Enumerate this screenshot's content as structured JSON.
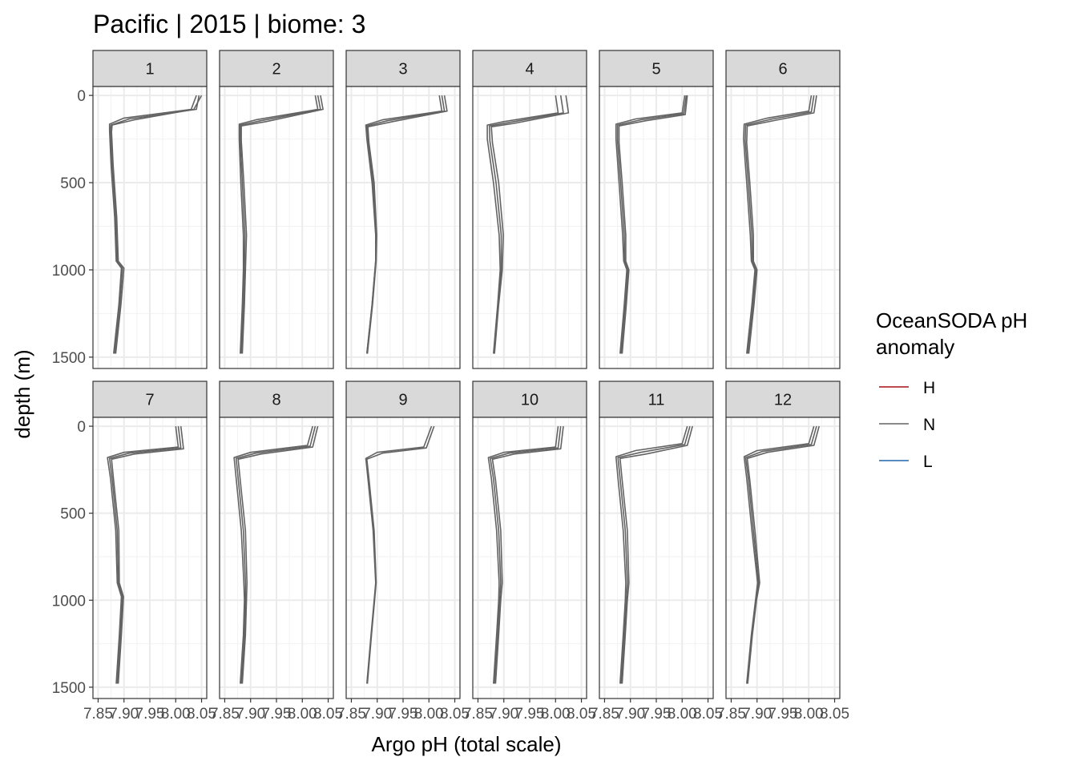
{
  "chart_data": {
    "type": "line",
    "title": "Pacific | 2015 | biome: 3",
    "xlabel": "Argo pH (total scale)",
    "ylabel": "depth (m)",
    "xlim": [
      7.85,
      8.05
    ],
    "ylim": [
      1500,
      0
    ],
    "y_reversed": true,
    "x_ticks": [
      7.85,
      7.9,
      7.95,
      8.0,
      8.05
    ],
    "x_tick_labels": [
      "7.85",
      "7.90",
      "7.95",
      "8.00",
      "8.05"
    ],
    "y_ticks": [
      0,
      500,
      1000,
      1500
    ],
    "y_tick_labels": [
      "0",
      "500",
      "1000",
      "1500"
    ],
    "grid": true,
    "legend": {
      "title_lines": [
        "OceanSODA pH",
        "anomaly"
      ],
      "position": "right",
      "items": [
        {
          "label": "H",
          "color": "#A50F15"
        },
        {
          "label": "N",
          "color": "#636363"
        },
        {
          "label": "L",
          "color": "#2166AC"
        }
      ]
    },
    "line_color": "#636363",
    "panels": [
      {
        "label": "1",
        "profiles": [
          {
            "depth": [
              0,
              80,
              130,
              165,
              200,
              400,
              700,
              950,
              990,
              1200,
              1480
            ],
            "ph": [
              8.04,
              8.03,
              7.9,
              7.872,
              7.872,
              7.875,
              7.882,
              7.885,
              7.895,
              7.89,
              7.88
            ]
          },
          {
            "depth": [
              0,
              80,
              135,
              170,
              200,
              400,
              700,
              950,
              990,
              1200,
              1480
            ],
            "ph": [
              8.045,
              8.04,
              7.91,
              7.875,
              7.874,
              7.877,
              7.884,
              7.887,
              7.897,
              7.892,
              7.882
            ]
          },
          {
            "depth": [
              0,
              80,
              140,
              170,
              210,
              400,
              700,
              950,
              990,
              1200,
              1480
            ],
            "ph": [
              8.05,
              8.035,
              7.92,
              7.877,
              7.876,
              7.879,
              7.886,
              7.889,
              7.9,
              7.894,
              7.884
            ]
          }
        ]
      },
      {
        "label": "2",
        "profiles": [
          {
            "depth": [
              0,
              80,
              140,
              165,
              250,
              500,
              800,
              1000,
              1200,
              1480
            ],
            "ph": [
              8.025,
              8.03,
              7.91,
              7.878,
              7.878,
              7.881,
              7.886,
              7.886,
              7.884,
              7.88
            ]
          },
          {
            "depth": [
              0,
              80,
              145,
              170,
              250,
              500,
              800,
              1000,
              1200,
              1480
            ],
            "ph": [
              8.03,
              8.035,
              7.92,
              7.88,
              7.88,
              7.884,
              7.889,
              7.888,
              7.886,
              7.882
            ]
          },
          {
            "depth": [
              0,
              80,
              150,
              175,
              260,
              500,
              800,
              1000,
              1200,
              1480
            ],
            "ph": [
              8.035,
              8.04,
              7.93,
              7.882,
              7.882,
              7.887,
              7.892,
              7.89,
              7.888,
              7.884
            ]
          }
        ]
      },
      {
        "label": "3",
        "profiles": [
          {
            "depth": [
              0,
              90,
              140,
              170,
              250,
              500,
              800,
              950,
              1200,
              1480
            ],
            "ph": [
              8.02,
              8.025,
              7.91,
              7.878,
              7.88,
              7.89,
              7.897,
              7.897,
              7.89,
              7.88
            ]
          },
          {
            "depth": [
              0,
              90,
              145,
              175,
              260,
              500,
              800,
              950,
              1200,
              1480
            ],
            "ph": [
              8.025,
              8.03,
              7.92,
              7.88,
              7.882,
              7.892,
              7.898,
              7.897,
              7.89,
              7.88
            ]
          },
          {
            "depth": [
              0,
              90,
              150,
              180,
              270,
              500,
              800,
              950,
              1200,
              1480
            ],
            "ph": [
              8.03,
              8.035,
              7.93,
              7.882,
              7.884,
              7.894,
              7.899,
              7.898,
              7.891,
              7.881
            ]
          }
        ]
      },
      {
        "label": "4",
        "profiles": [
          {
            "depth": [
              0,
              100,
              150,
              170,
              250,
              500,
              800,
              1000,
              1200,
              1480
            ],
            "ph": [
              8.0,
              8.005,
              7.9,
              7.868,
              7.868,
              7.88,
              7.891,
              7.893,
              7.888,
              7.88
            ]
          },
          {
            "depth": [
              0,
              100,
              155,
              175,
              260,
              500,
              800,
              1000,
              1200,
              1480
            ],
            "ph": [
              8.01,
              8.015,
              7.91,
              7.872,
              7.873,
              7.885,
              7.895,
              7.895,
              7.889,
              7.881
            ]
          },
          {
            "depth": [
              0,
              100,
              160,
              180,
              270,
              500,
              800,
              1000,
              1200,
              1480
            ],
            "ph": [
              8.02,
              8.025,
              7.92,
              7.876,
              7.878,
              7.89,
              7.899,
              7.897,
              7.89,
              7.882
            ]
          }
        ]
      },
      {
        "label": "5",
        "profiles": [
          {
            "depth": [
              0,
              100,
              135,
              165,
              250,
              500,
              800,
              950,
              1000,
              1200,
              1480
            ],
            "ph": [
              8.005,
              8.0,
              7.91,
              7.872,
              7.872,
              7.878,
              7.885,
              7.887,
              7.893,
              7.888,
              7.88
            ]
          },
          {
            "depth": [
              0,
              105,
              140,
              170,
              260,
              500,
              800,
              950,
              1000,
              1200,
              1480
            ],
            "ph": [
              8.008,
              8.003,
              7.92,
              7.875,
              7.875,
              7.881,
              7.888,
              7.889,
              7.895,
              7.89,
              7.882
            ]
          },
          {
            "depth": [
              0,
              110,
              145,
              175,
              270,
              500,
              800,
              950,
              1000,
              1200,
              1480
            ],
            "ph": [
              8.01,
              8.006,
              7.93,
              7.878,
              7.878,
              7.884,
              7.891,
              7.891,
              7.897,
              7.892,
              7.884
            ]
          }
        ]
      },
      {
        "label": "6",
        "profiles": [
          {
            "depth": [
              0,
              90,
              130,
              165,
              250,
              500,
              800,
              950,
              1000,
              1200,
              1480
            ],
            "ph": [
              8.005,
              8.0,
              7.92,
              7.875,
              7.874,
              7.88,
              7.887,
              7.889,
              7.896,
              7.89,
              7.88
            ]
          },
          {
            "depth": [
              0,
              95,
              135,
              170,
              260,
              500,
              800,
              950,
              1000,
              1200,
              1480
            ],
            "ph": [
              8.01,
              8.005,
              7.93,
              7.878,
              7.877,
              7.883,
              7.89,
              7.891,
              7.898,
              7.892,
              7.882
            ]
          },
          {
            "depth": [
              0,
              100,
              140,
              175,
              270,
              500,
              800,
              950,
              1000,
              1200,
              1480
            ],
            "ph": [
              8.015,
              8.01,
              7.94,
              7.881,
              7.88,
              7.886,
              7.893,
              7.893,
              7.9,
              7.894,
              7.884
            ]
          }
        ]
      },
      {
        "label": "7",
        "profiles": [
          {
            "depth": [
              0,
              120,
              150,
              180,
              300,
              600,
              900,
              980,
              1200,
              1480
            ],
            "ph": [
              8.0,
              8.005,
              7.9,
              7.868,
              7.874,
              7.884,
              7.887,
              7.895,
              7.891,
              7.885
            ]
          },
          {
            "depth": [
              0,
              125,
              155,
              185,
              300,
              600,
              900,
              980,
              1200,
              1480
            ],
            "ph": [
              8.005,
              8.01,
              7.91,
              7.872,
              7.877,
              7.887,
              7.889,
              7.897,
              7.893,
              7.887
            ]
          },
          {
            "depth": [
              0,
              130,
              160,
              190,
              310,
              600,
              900,
              980,
              1200,
              1480
            ],
            "ph": [
              8.01,
              8.015,
              7.92,
              7.876,
              7.88,
              7.89,
              7.891,
              7.899,
              7.895,
              7.889
            ]
          }
        ]
      },
      {
        "label": "8",
        "profiles": [
          {
            "depth": [
              0,
              110,
              150,
              180,
              300,
              600,
              900,
              1000,
              1200,
              1480
            ],
            "ph": [
              8.02,
              8.01,
              7.9,
              7.868,
              7.872,
              7.882,
              7.887,
              7.888,
              7.886,
              7.88
            ]
          },
          {
            "depth": [
              0,
              115,
              155,
              185,
              300,
              600,
              900,
              1000,
              1200,
              1480
            ],
            "ph": [
              8.025,
              8.015,
              7.91,
              7.872,
              7.876,
              7.886,
              7.89,
              7.89,
              7.888,
              7.882
            ]
          },
          {
            "depth": [
              0,
              120,
              160,
              190,
              310,
              600,
              900,
              1000,
              1200,
              1480
            ],
            "ph": [
              8.03,
              8.02,
              7.92,
              7.876,
              7.88,
              7.89,
              7.893,
              7.892,
              7.89,
              7.884
            ]
          }
        ]
      },
      {
        "label": "9",
        "profiles": [
          {
            "depth": [
              0,
              120,
              150,
              185,
              300,
              600,
              900,
              1000,
              1200,
              1480
            ],
            "ph": [
              8.005,
              7.99,
              7.9,
              7.878,
              7.882,
              7.892,
              7.897,
              7.894,
              7.888,
              7.88
            ]
          },
          {
            "depth": [
              0,
              125,
              155,
              190,
              300,
              600,
              900,
              1000,
              1200,
              1480
            ],
            "ph": [
              8.01,
              7.995,
              7.91,
              7.88,
              7.884,
              7.894,
              7.898,
              7.895,
              7.889,
              7.881
            ]
          }
        ]
      },
      {
        "label": "10",
        "profiles": [
          {
            "depth": [
              0,
              120,
              150,
              180,
              300,
              600,
              900,
              1000,
              1200,
              1480
            ],
            "ph": [
              8.005,
              8.0,
              7.9,
              7.87,
              7.876,
              7.886,
              7.891,
              7.89,
              7.886,
              7.88
            ]
          },
          {
            "depth": [
              0,
              125,
              155,
              185,
              300,
              600,
              900,
              1000,
              1200,
              1480
            ],
            "ph": [
              8.01,
              8.005,
              7.91,
              7.874,
              7.88,
              7.89,
              7.894,
              7.892,
              7.888,
              7.882
            ]
          },
          {
            "depth": [
              0,
              130,
              160,
              190,
              310,
              600,
              900,
              1000,
              1200,
              1480
            ],
            "ph": [
              8.015,
              8.01,
              7.92,
              7.878,
              7.884,
              7.894,
              7.897,
              7.894,
              7.89,
              7.884
            ]
          }
        ]
      },
      {
        "label": "11",
        "profiles": [
          {
            "depth": [
              0,
              100,
              140,
              175,
              300,
              600,
              900,
              1000,
              1200,
              1480
            ],
            "ph": [
              8.01,
              8.0,
              7.91,
              7.872,
              7.876,
              7.886,
              7.891,
              7.89,
              7.886,
              7.88
            ]
          },
          {
            "depth": [
              0,
              105,
              150,
              180,
              300,
              600,
              900,
              1000,
              1200,
              1480
            ],
            "ph": [
              8.015,
              8.005,
              7.92,
              7.876,
              7.88,
              7.89,
              7.894,
              7.892,
              7.888,
              7.882
            ]
          },
          {
            "depth": [
              0,
              110,
              160,
              185,
              310,
              600,
              900,
              1000,
              1200,
              1480
            ],
            "ph": [
              8.02,
              8.01,
              7.93,
              7.88,
              7.884,
              7.894,
              7.897,
              7.894,
              7.89,
              7.884
            ]
          }
        ]
      },
      {
        "label": "12",
        "profiles": [
          {
            "depth": [
              0,
              100,
              140,
              175,
              300,
              600,
              900,
              1000,
              1200,
              1480
            ],
            "ph": [
              8.01,
              8.0,
              7.9,
              7.875,
              7.88,
              7.89,
              7.901,
              7.897,
              7.889,
              7.88
            ]
          },
          {
            "depth": [
              0,
              105,
              145,
              180,
              300,
              600,
              900,
              1000,
              1200,
              1480
            ],
            "ph": [
              8.015,
              8.005,
              7.91,
              7.878,
              7.883,
              7.893,
              7.903,
              7.898,
              7.89,
              7.881
            ]
          },
          {
            "depth": [
              0,
              110,
              150,
              185,
              310,
              600,
              900,
              1000,
              1200,
              1480
            ],
            "ph": [
              8.02,
              8.01,
              7.92,
              7.881,
              7.886,
              7.896,
              7.905,
              7.899,
              7.891,
              7.882
            ]
          }
        ]
      }
    ]
  }
}
